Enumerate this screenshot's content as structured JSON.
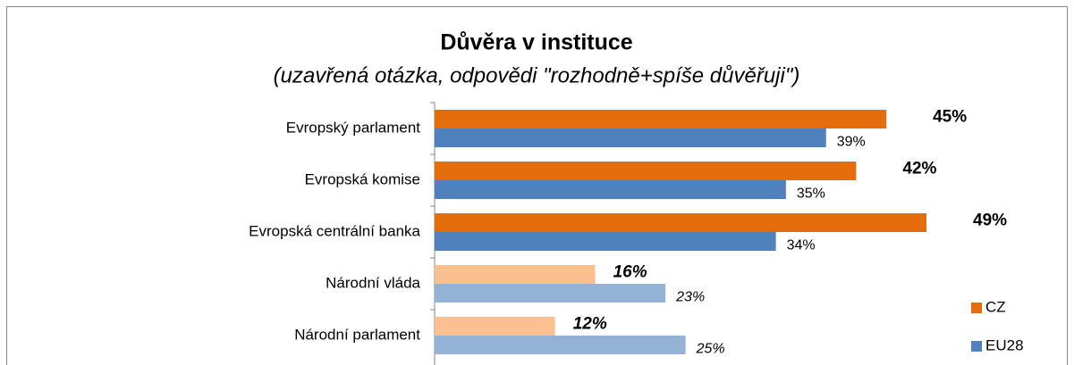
{
  "chart_data": {
    "type": "bar",
    "orientation": "horizontal",
    "title": "Důvěra v instituce",
    "subtitle": "(uzavřená otázka, odpovědi \"rozhodně+spíše důvěřuji\")",
    "categories": [
      "Evropský parlament",
      "Evropská komise",
      "Evropská centrální banka",
      "Národní vláda",
      "Národní parlament"
    ],
    "series": [
      {
        "name": "CZ",
        "color": "#e46c0a",
        "point_colors": [
          "#e46c0a",
          "#e46c0a",
          "#e46c0a",
          "#fac090",
          "#fac090"
        ],
        "values": [
          45,
          42,
          49,
          16,
          12
        ],
        "value_labels": [
          "45%",
          "42%",
          "49%",
          "16%",
          "12%"
        ]
      },
      {
        "name": "EU28",
        "color": "#4f81bd",
        "point_colors": [
          "#4f81bd",
          "#4f81bd",
          "#4f81bd",
          "#95b3d7",
          "#95b3d7"
        ],
        "values": [
          39,
          35,
          34,
          23,
          25
        ],
        "value_labels": [
          "39%",
          "35%",
          "34%",
          "23%",
          "25%"
        ]
      }
    ],
    "legend": "bottom-right"
  }
}
